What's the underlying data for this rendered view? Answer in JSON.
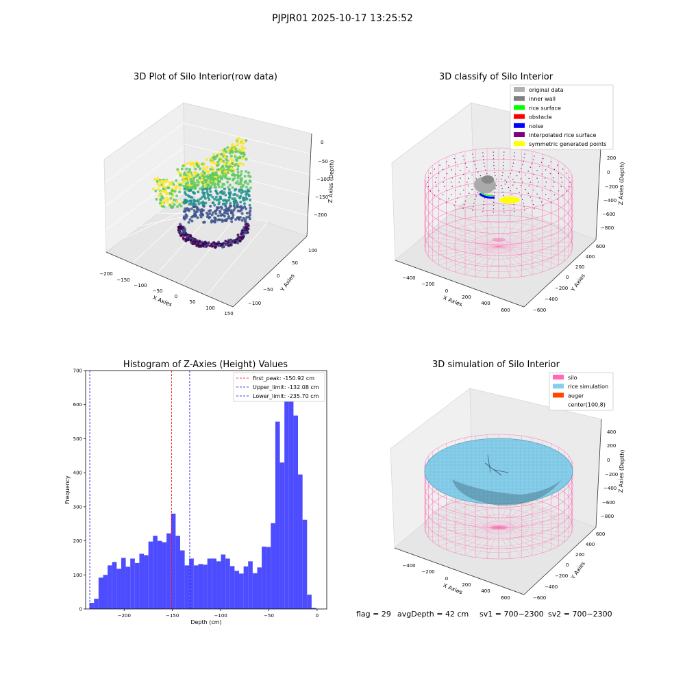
{
  "suptitle": "PJPJR01 2025-10-17 13:25:52",
  "status": {
    "flag": "flag = 29",
    "avg_depth": "avgDepth = 42 cm",
    "sv1": "sv1 = 700~2300",
    "sv2": "sv2 = 700~2300"
  },
  "colors": {
    "hist_bar": "#4d4dff",
    "first_peak": "#ff0000",
    "limit": "#0000ff",
    "silo": "#ff69b4",
    "rice_sim": "#87ceeb",
    "auger": "#ff4500",
    "viridis": [
      "#440154",
      "#3b528b",
      "#21918c",
      "#5ec962",
      "#fde725"
    ]
  },
  "panels": {
    "raw": {
      "title": "3D Plot of Silo Interior(row data)",
      "xlabel": "X Axies",
      "ylabel": "Y Axies",
      "zlabel": "Z Axies (Depth)",
      "x_ticks": [
        "−200",
        "−150",
        "−100",
        "−50",
        "0",
        "50",
        "100",
        "150"
      ],
      "y_ticks": [
        "100",
        "50",
        "0",
        "−50",
        "−100"
      ],
      "z_ticks": [
        "0",
        "−50",
        "−100",
        "−150",
        "−200"
      ]
    },
    "classify": {
      "title": "3D classify of Silo Interior",
      "xlabel": "X Axies",
      "ylabel": "Y Axies",
      "zlabel": "Z Axies (Depth)",
      "x_ticks": [
        "−400",
        "−200",
        "0",
        "200",
        "400",
        "600"
      ],
      "y_ticks": [
        "600",
        "400",
        "200",
        "0",
        "−200",
        "−400",
        "−600"
      ],
      "z_ticks": [
        "200",
        "0",
        "−200",
        "−400",
        "−600",
        "−800"
      ],
      "legend": [
        {
          "label": "original data",
          "color": "#b0b0b0"
        },
        {
          "label": "inner wall",
          "color": "#808080"
        },
        {
          "label": "rice surface",
          "color": "#00ff00"
        },
        {
          "label": "obstacle",
          "color": "#ff0000"
        },
        {
          "label": "noise",
          "color": "#0000ff"
        },
        {
          "label": "interpolated rice surface",
          "color": "#800080"
        },
        {
          "label": "symmetric generated points",
          "color": "#ffff00"
        }
      ]
    },
    "simulation": {
      "title": "3D simulation of Silo Interior",
      "xlabel": "X Axies",
      "ylabel": "Y Axies",
      "zlabel": "Z Axies (Depth)",
      "x_ticks": [
        "−400",
        "−200",
        "0",
        "200",
        "400",
        "600"
      ],
      "y_ticks": [
        "600",
        "400",
        "200",
        "0",
        "−200",
        "−400",
        "−600"
      ],
      "z_ticks": [
        "400",
        "200",
        "0",
        "−200",
        "−400",
        "−600",
        "−800"
      ],
      "legend": [
        {
          "label": "silo",
          "color": "#ff69b4"
        },
        {
          "label": "rice simulation",
          "color": "#87ceeb"
        },
        {
          "label": "auger",
          "color": "#ff4500"
        },
        {
          "label": "center(100,8)",
          "color": "#ffffff"
        }
      ]
    }
  },
  "chart_data": {
    "type": "bar",
    "title": "Histogram of Z-Axies (Height) Values",
    "xlabel": "Depth (cm)",
    "ylabel": "Frequency",
    "xlim": [
      -240,
      10
    ],
    "ylim": [
      0,
      700
    ],
    "x_ticks": [
      -200,
      -150,
      -100,
      -50,
      0
    ],
    "y_ticks": [
      0,
      100,
      200,
      300,
      400,
      500,
      600,
      700
    ],
    "bin_start": -236,
    "bin_width": 4.7,
    "values": [
      18,
      30,
      92,
      100,
      128,
      138,
      118,
      150,
      124,
      148,
      135,
      162,
      158,
      198,
      215,
      200,
      196,
      222,
      280,
      215,
      172,
      128,
      148,
      128,
      132,
      130,
      148,
      148,
      140,
      160,
      148,
      126,
      112,
      104,
      125,
      140,
      105,
      122,
      183,
      182,
      252,
      550,
      430,
      640,
      670,
      568,
      395,
      262,
      42,
      3
    ],
    "legend_placement": "top-right",
    "lines": [
      {
        "label": "first_peak: -150.92 cm",
        "x": -150.92,
        "color": "#ff0000"
      },
      {
        "label": "Upper_limit: -132.08 cm",
        "x": -132.08,
        "color": "#0000ff"
      },
      {
        "label": "Lower_limit: -235.70 cm",
        "x": -235.7,
        "color": "#0000ff"
      }
    ]
  }
}
